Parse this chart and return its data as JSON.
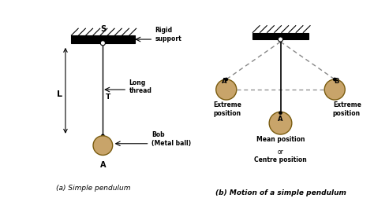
{
  "background_color": "#ffffff",
  "bob_color": "#c8a46a",
  "bob_edge_color": "#7a5c10",
  "thread_color": "#000000",
  "dashed_color": "#888888",
  "label_a_simple": "(a) Simple pendulum",
  "label_b_motion": "(b) Motion of a simple pendulum",
  "support_label": "S",
  "thread_label": "T",
  "length_label": "L",
  "bob_label": "A",
  "rigid_support_text": "Rigid\nsupport",
  "long_thread_text": "Long\nthread",
  "bob_text": "Bob\n(Metal ball)",
  "extreme_left": "Extreme\nposition",
  "extreme_right": "Extreme\nposition",
  "mean_label": "Mean position",
  "or_label": "or",
  "centre_label": "Centre position",
  "left_ball_label": "A",
  "center_ball_label": "A",
  "right_ball_label": "B",
  "fig_width": 4.74,
  "fig_height": 2.66,
  "dpi": 100
}
